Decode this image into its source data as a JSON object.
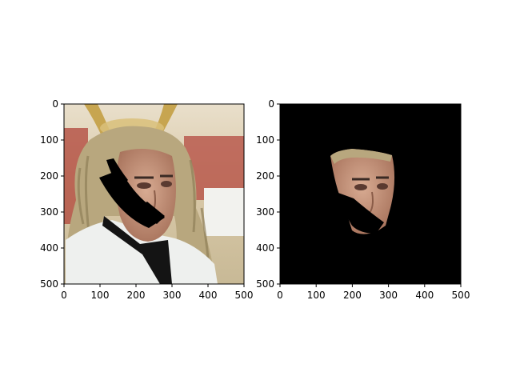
{
  "chart_data": [
    {
      "type": "image",
      "xlim": [
        0,
        500
      ],
      "ylim": [
        500,
        0
      ],
      "x_ticks": [
        "0",
        "100",
        "200",
        "300",
        "400",
        "500"
      ],
      "y_ticks": [
        "0",
        "100",
        "200",
        "300",
        "400",
        "500"
      ],
      "content": "masked-face-photo"
    },
    {
      "type": "image",
      "xlim": [
        0,
        500
      ],
      "ylim": [
        500,
        0
      ],
      "x_ticks": [
        "0",
        "100",
        "200",
        "300",
        "400",
        "500"
      ],
      "y_ticks": [
        "0",
        "100",
        "200",
        "300",
        "400",
        "500"
      ],
      "content": "segmented-face-on-black"
    }
  ],
  "colors": {
    "background": "#ffffff",
    "mask_black": "#000000",
    "skin": "#c99a82",
    "hair": "#b8a77e",
    "shirt": "#eef0ee",
    "bg_red": "#b0443a",
    "bg_pale": "#e8dcc6",
    "gold": "#c7a550"
  }
}
